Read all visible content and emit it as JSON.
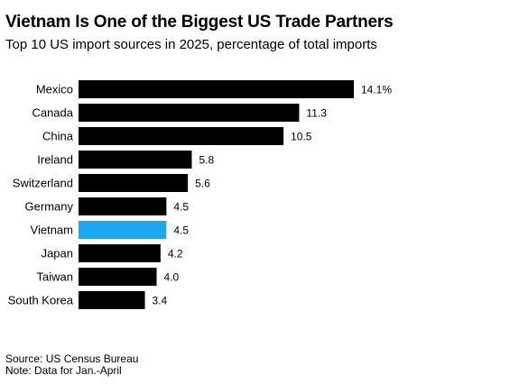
{
  "title": "Vietnam Is One of the Biggest US Trade Partners",
  "subtitle": "Top 10 US import sources in 2025, percentage of total imports",
  "source": "Source: US Census Bureau",
  "note": "Note: Data for Jan.-April",
  "colors": {
    "default_bar": "#000000",
    "highlight_bar": "#1aa9f1"
  },
  "chart_data": {
    "type": "bar",
    "orientation": "horizontal",
    "categories": [
      "Mexico",
      "Canada",
      "China",
      "Ireland",
      "Switzerland",
      "Germany",
      "Vietnam",
      "Japan",
      "Taiwan",
      "South Korea"
    ],
    "values": [
      14.1,
      11.3,
      10.5,
      5.8,
      5.6,
      4.5,
      4.5,
      4.2,
      4.0,
      3.4
    ],
    "value_labels": [
      "14.1%",
      "11.3",
      "10.5",
      "5.8",
      "5.6",
      "4.5",
      "4.5",
      "4.2",
      "4.0",
      "3.4"
    ],
    "highlight": "Vietnam",
    "xlim": [
      0,
      14.1
    ],
    "grid": false,
    "legend": false
  }
}
